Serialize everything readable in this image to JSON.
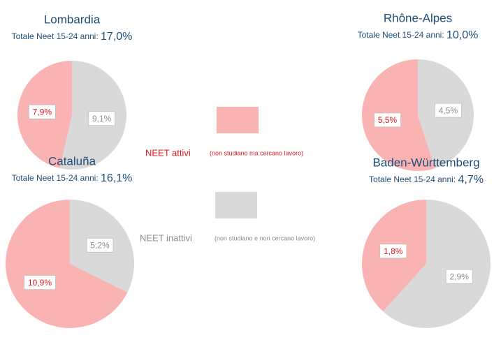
{
  "chart_data": [
    {
      "type": "pie",
      "title": "Lombardia",
      "subtitle": "Totale Neet 15-24 anni:",
      "total": "17,0%",
      "values": [
        7.9,
        9.1
      ],
      "value_labels": [
        "7,9%",
        "9,1%"
      ]
    },
    {
      "type": "pie",
      "title": "Rhône-Alpes",
      "subtitle": "Totale Neet 15-24 anni:",
      "total": "10,0%",
      "values": [
        5.5,
        4.5
      ],
      "value_labels": [
        "5,5%",
        "4,5%"
      ]
    },
    {
      "type": "pie",
      "title": "Cataluña",
      "subtitle": "Totale Neet 15-24 anni:",
      "total": "16,1%",
      "values": [
        10.9,
        5.2
      ],
      "value_labels": [
        "10,9%",
        "5,2%"
      ]
    },
    {
      "type": "pie",
      "title": "Baden-Württemberg",
      "subtitle": "Totale Neet 15-24 anni:",
      "total": "4,7%",
      "values": [
        1.8,
        2.9
      ],
      "value_labels": [
        "1,8%",
        "2,9%"
      ]
    }
  ],
  "legend": {
    "items": [
      {
        "name": "NEET attivi",
        "note": "(non studiano ma cercano lavoro)",
        "color": "#f9b3b3",
        "text_color": "#e0191f"
      },
      {
        "name": "NEET inattivi",
        "note": "(non studiano e non cercano lavoro)",
        "color": "#d9d9d9",
        "text_color": "#8c8c8c"
      }
    ]
  }
}
